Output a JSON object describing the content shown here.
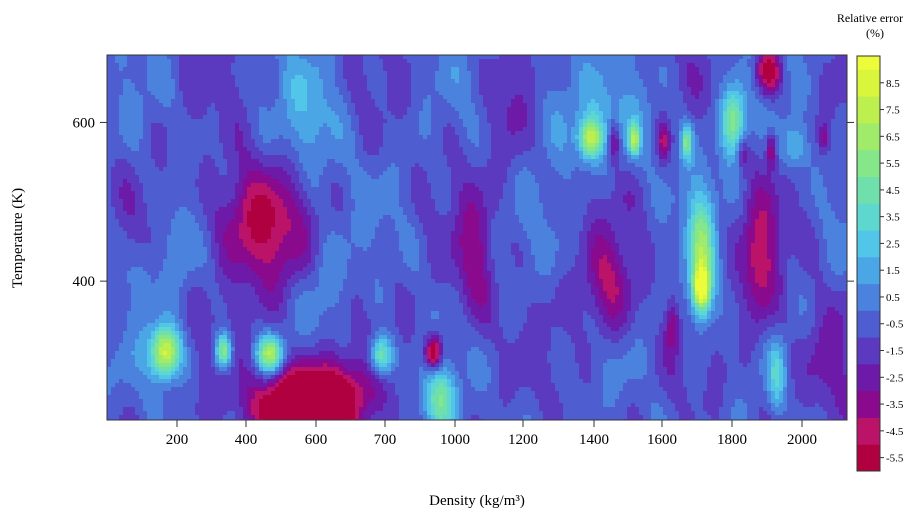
{
  "chart_data": {
    "type": "heatmap",
    "title": "",
    "xlabel": "Density (kg/m³)",
    "ylabel": "Temperature (K)",
    "x_tick_labels": [
      "200",
      "400",
      "600",
      "700",
      "1000",
      "1200",
      "1400",
      "1600",
      "1800",
      "2000"
    ],
    "y_ticks": [
      400,
      600
    ],
    "ylim": [
      225,
      685
    ],
    "colorbar": {
      "title_line1": "Relative error",
      "title_line2": "(%)",
      "levels": [
        8.5,
        7.5,
        6.5,
        5.5,
        4.5,
        3.5,
        2.5,
        1.5,
        0.5,
        -0.5,
        -1.5,
        -2.5,
        -3.5,
        -4.5,
        -5.5
      ],
      "range": [
        -6,
        9.5
      ]
    },
    "colors": {
      "neg6": "#b0003f",
      "neg5": "#bb1368",
      "neg4": "#8a0a8e",
      "neg3": "#6d1aa8",
      "neg2": "#5b3abf",
      "neg1": "#4e5dcf",
      "zero": "#4a82dd",
      "pos1": "#4ba6e6",
      "pos2": "#52c6e8",
      "pos3": "#5ed8cf",
      "pos4": "#6fdfab",
      "pos5": "#86e68a",
      "pos6": "#a0eb6a",
      "pos7": "#bdef4e",
      "pos8": "#d9f53c",
      "pos9": "#ecfb3a"
    },
    "features": [
      {
        "x": 1,
        "y": 310,
        "v": 9,
        "sx": 0.18,
        "sy": 22
      },
      {
        "x": 2,
        "y": 312,
        "v": 7,
        "sx": 0.1,
        "sy": 15
      },
      {
        "x": 2.8,
        "y": 308,
        "v": 7.5,
        "sx": 0.16,
        "sy": 16
      },
      {
        "x": 4.7,
        "y": 306,
        "v": 6.5,
        "sx": 0.15,
        "sy": 18
      },
      {
        "x": 5.7,
        "y": 250,
        "v": 5,
        "sx": 0.2,
        "sy": 30
      },
      {
        "x": 3.6,
        "y": 250,
        "v": -8,
        "sx": 0.55,
        "sy": 35
      },
      {
        "x": 3.2,
        "y": 240,
        "v": -4,
        "sx": 0.6,
        "sy": 25
      },
      {
        "x": 5.6,
        "y": 310,
        "v": -7,
        "sx": 0.1,
        "sy": 15
      },
      {
        "x": 2.5,
        "y": 480,
        "v": -4,
        "sx": 0.5,
        "sy": 50
      },
      {
        "x": 2.9,
        "y": 430,
        "v": -1.5,
        "sx": 0.5,
        "sy": 60
      },
      {
        "x": 1.2,
        "y": 440,
        "v": 2,
        "sx": 0.18,
        "sy": 40
      },
      {
        "x": 0.6,
        "y": 400,
        "v": 1.5,
        "sx": 0.15,
        "sy": 35
      },
      {
        "x": 3.5,
        "y": 600,
        "v": 2,
        "sx": 0.4,
        "sy": 60
      },
      {
        "x": 3.7,
        "y": 400,
        "v": 1.5,
        "sx": 0.3,
        "sy": 45
      },
      {
        "x": 6.3,
        "y": 420,
        "v": -3,
        "sx": 0.22,
        "sy": 60
      },
      {
        "x": 8.5,
        "y": 600,
        "v": 1.5,
        "sx": 0.7,
        "sy": 45
      },
      {
        "x": 8.3,
        "y": 580,
        "v": 7.5,
        "sx": 0.14,
        "sy": 18
      },
      {
        "x": 8.7,
        "y": 575,
        "v": -4,
        "sx": 0.07,
        "sy": 18
      },
      {
        "x": 9.05,
        "y": 578,
        "v": 6.5,
        "sx": 0.07,
        "sy": 14
      },
      {
        "x": 9.55,
        "y": 575,
        "v": -3.5,
        "sx": 0.07,
        "sy": 16
      },
      {
        "x": 9.95,
        "y": 575,
        "v": 5.5,
        "sx": 0.07,
        "sy": 16
      },
      {
        "x": 10.2,
        "y": 430,
        "v": 6,
        "sx": 0.16,
        "sy": 60
      },
      {
        "x": 10.2,
        "y": 390,
        "v": 8,
        "sx": 0.1,
        "sy": 20
      },
      {
        "x": 10.75,
        "y": 600,
        "v": 6.5,
        "sx": 0.15,
        "sy": 30
      },
      {
        "x": 10.9,
        "y": 560,
        "v": -2.5,
        "sx": 0.07,
        "sy": 14
      },
      {
        "x": 11.2,
        "y": 420,
        "v": -4,
        "sx": 0.22,
        "sy": 60
      },
      {
        "x": 11.4,
        "y": 565,
        "v": -4,
        "sx": 0.06,
        "sy": 16
      },
      {
        "x": 11.35,
        "y": 665,
        "v": -6,
        "sx": 0.15,
        "sy": 20
      },
      {
        "x": 11.8,
        "y": 570,
        "v": 3,
        "sx": 0.15,
        "sy": 20
      },
      {
        "x": 12.3,
        "y": 580,
        "v": -2.5,
        "sx": 0.06,
        "sy": 12
      },
      {
        "x": 8.6,
        "y": 390,
        "v": -3.5,
        "sx": 0.3,
        "sy": 45
      },
      {
        "x": 11.5,
        "y": 280,
        "v": 3,
        "sx": 0.1,
        "sy": 30
      },
      {
        "x": 9.7,
        "y": 345,
        "v": -3,
        "sx": 0.08,
        "sy": 25
      },
      {
        "x": 12.3,
        "y": 300,
        "v": -1.5,
        "sx": 0.4,
        "sy": 50
      },
      {
        "x": 6.9,
        "y": 620,
        "v": -1.5,
        "sx": 0.25,
        "sy": 60
      },
      {
        "x": 7.7,
        "y": 640,
        "v": 1,
        "sx": 0.3,
        "sy": 40
      }
    ]
  }
}
